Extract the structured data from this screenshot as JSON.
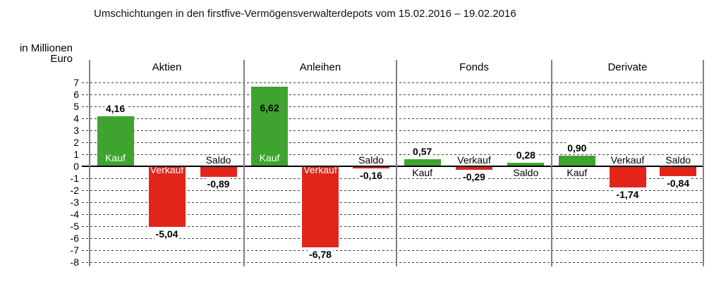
{
  "title": "Umschichtungen in den firstfive-Vermögensverwalterdepots vom 15.02.2016 – 19.02.2016",
  "unit_label": {
    "line1": "in Millionen",
    "line2": "Euro"
  },
  "chart_data": {
    "type": "bar",
    "title": "Umschichtungen in den firstfive-Vermögensverwalterdepots vom 15.02.2016 – 19.02.2016",
    "xlabel": "",
    "ylabel": "in Millionen Euro",
    "ylim": [
      -8,
      7
    ],
    "ytick_step": 1,
    "grid": "horizontal-dashed",
    "zero_line": true,
    "legend_position": "none",
    "categories": [
      "Aktien",
      "Anleihen",
      "Fonds",
      "Derivate"
    ],
    "category_keys": [
      "aktien",
      "anleihen",
      "fonds",
      "derivate"
    ],
    "series": [
      {
        "name": "Kauf",
        "key": "kauf",
        "values": [
          4.16,
          6.62,
          0.57,
          0.9
        ],
        "labels": [
          "4,16",
          "6,62",
          "0,57",
          "0,90"
        ]
      },
      {
        "name": "Verkauf",
        "key": "verkauf",
        "values": [
          -5.04,
          -6.78,
          -0.29,
          -1.74
        ],
        "labels": [
          "-5,04",
          "-6,78",
          "-0,29",
          "-1,74"
        ]
      },
      {
        "name": "Saldo",
        "key": "saldo",
        "values": [
          -0.89,
          -0.16,
          0.28,
          -0.84
        ],
        "labels": [
          "-0,89",
          "-0,16",
          "0,28",
          "-0,84"
        ]
      }
    ],
    "colors": {
      "positive": "#3ea42f",
      "negative": "#e2251a",
      "grid": "#3d3d3d",
      "separator": "#7f7f7f",
      "zero_line": "#000000",
      "label_inside": "#ffffff",
      "label_outside": "#000000"
    }
  }
}
